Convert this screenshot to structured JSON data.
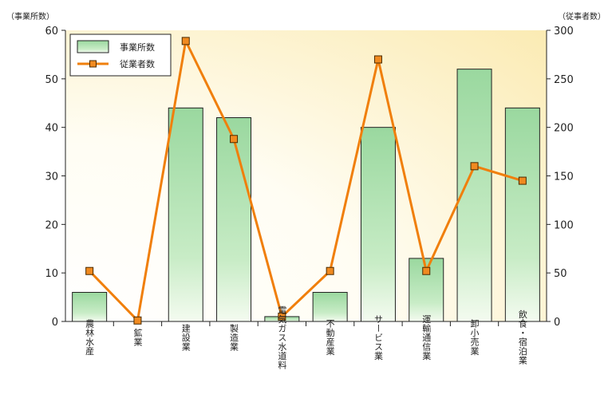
{
  "chart_data": {
    "type": "bar",
    "categories": [
      "農林水産",
      "鉱業",
      "建設業",
      "製造業",
      "電気ガス水道料",
      "不動産業",
      "サービス業",
      "運輸通信業",
      "卸小売業",
      "飲食・宿泊業"
    ],
    "series": [
      {
        "name": "事業所数",
        "type": "bar",
        "axis": "left",
        "values": [
          6,
          0,
          44,
          42,
          1,
          6,
          40,
          13,
          52,
          44
        ]
      },
      {
        "name": "従業者数",
        "type": "line",
        "axis": "right",
        "values": [
          52,
          1,
          289,
          188,
          5,
          52,
          270,
          52,
          160,
          145
        ]
      }
    ],
    "y_left": {
      "unit_label": "（事業所数）",
      "min": 0,
      "max": 60,
      "ticks": [
        0,
        10,
        20,
        30,
        40,
        50,
        60
      ]
    },
    "y_right": {
      "unit_label": "（従事者数）",
      "min": 0,
      "max": 300,
      "ticks": [
        0,
        50,
        100,
        150,
        200,
        250,
        300
      ]
    },
    "legend_position": "top-left",
    "grid": false,
    "colors": {
      "bar_fill_top": "#9ad89f",
      "bar_fill_bottom": "#f4fbf0",
      "bar_stroke": "#222222",
      "line": "#f07f0c",
      "marker_fill": "#f08a20",
      "marker_stroke": "#4a2a00",
      "bg_light": "#ffffff",
      "bg_warm": "#fbefc4"
    }
  }
}
